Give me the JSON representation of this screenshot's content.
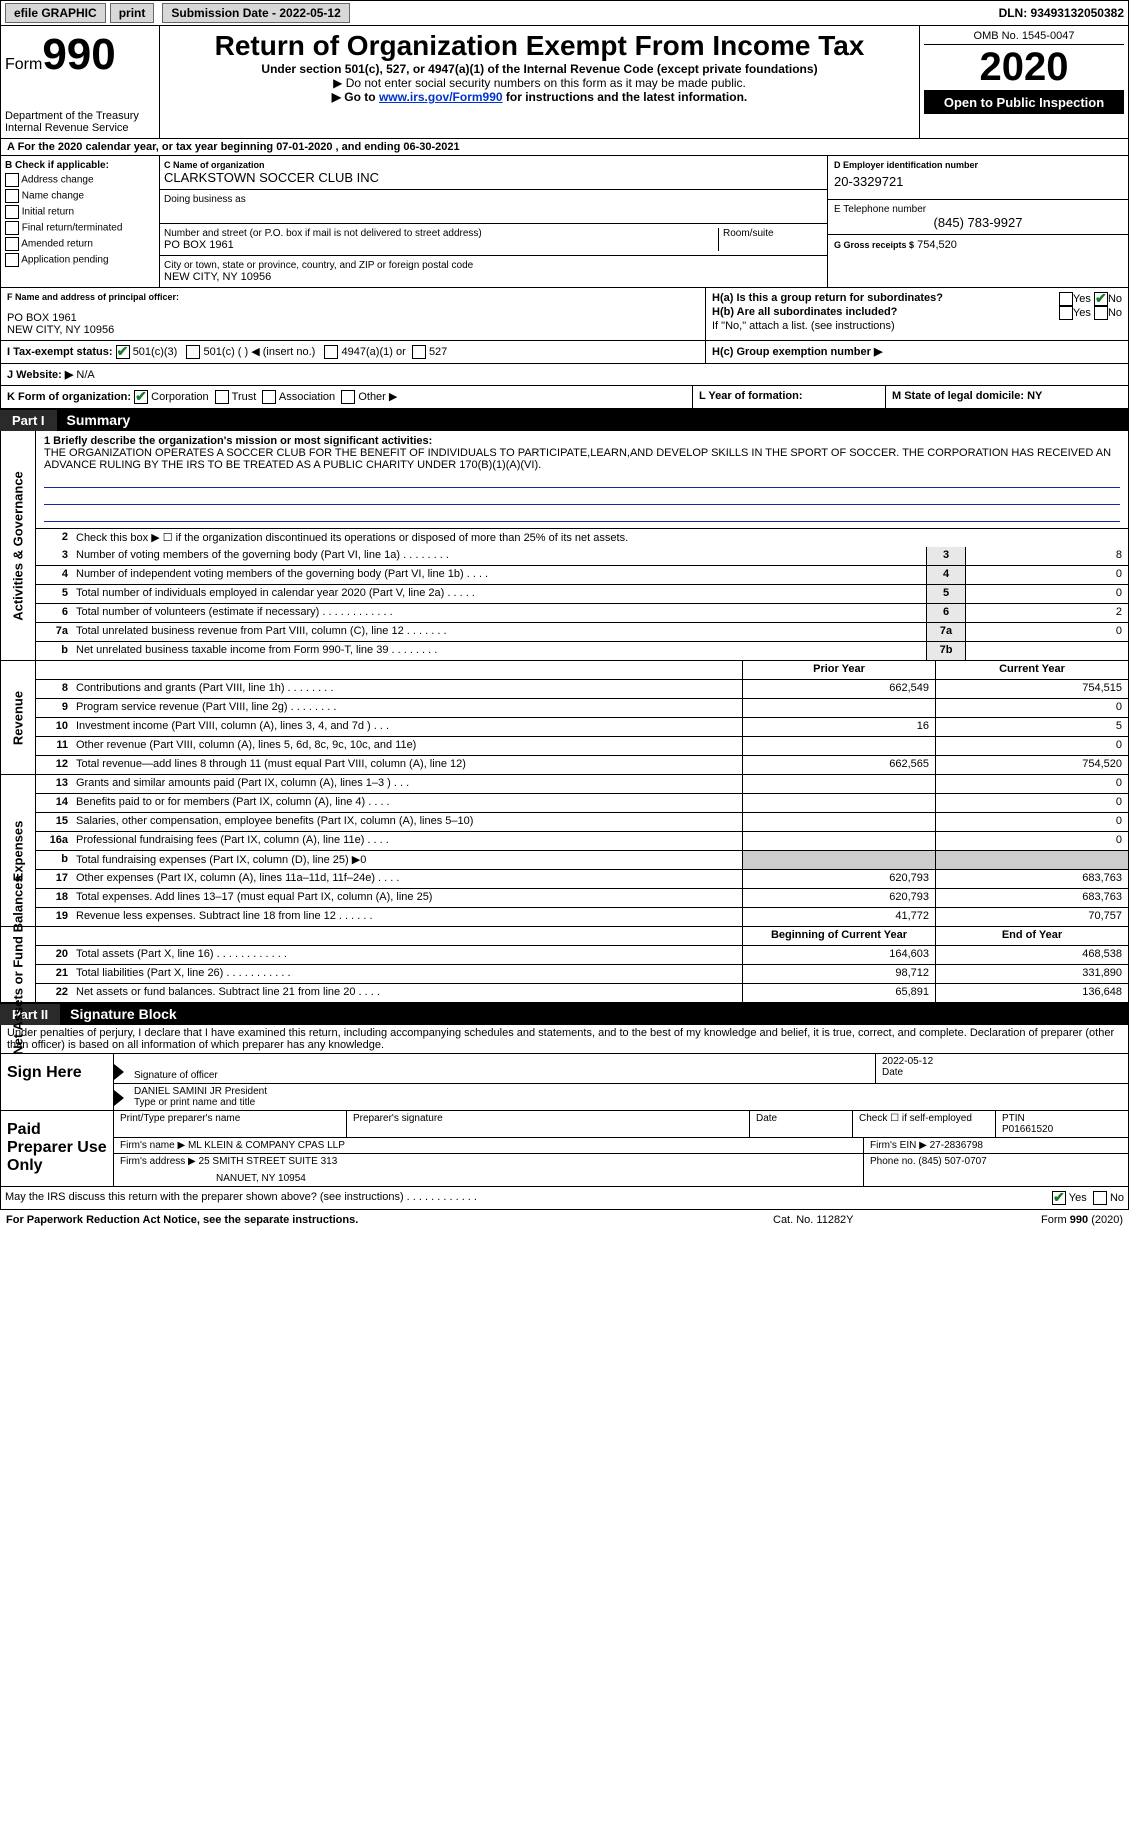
{
  "topbar": {
    "efile": "efile GRAPHIC",
    "print": "print",
    "submission_label": "Submission Date - 2022-05-12",
    "dln": "DLN: 93493132050382"
  },
  "header": {
    "form_prefix": "Form",
    "form_number": "990",
    "title": "Return of Organization Exempt From Income Tax",
    "subtitle": "Under section 501(c), 527, or 4947(a)(1) of the Internal Revenue Code (except private foundations)",
    "arrow1": "▶ Do not enter social security numbers on this form as it may be made public.",
    "arrow2_pre": "▶ Go to ",
    "arrow2_link": "www.irs.gov/Form990",
    "arrow2_post": " for instructions and the latest information.",
    "dept1": "Department of the Treasury",
    "dept2": "Internal Revenue Service",
    "omb": "OMB No. 1545-0047",
    "year": "2020",
    "open": "Open to Public Inspection"
  },
  "rowA": "A  For the 2020 calendar year, or tax year beginning 07-01-2020     , and ending 06-30-2021",
  "boxB": {
    "label": "B Check if applicable:",
    "items": [
      "Address change",
      "Name change",
      "Initial return",
      "Final return/terminated",
      "Amended return",
      "Application pending"
    ]
  },
  "boxC": {
    "label_name": "C Name of organization",
    "org": "CLARKSTOWN SOCCER CLUB INC",
    "dba_label": "Doing business as",
    "addr_label": "Number and street (or P.O. box if mail is not delivered to street address)",
    "room_label": "Room/suite",
    "addr": "PO BOX 1961",
    "city_label": "City or town, state or province, country, and ZIP or foreign postal code",
    "city": "NEW CITY, NY  10956"
  },
  "boxD": {
    "label": "D Employer identification number",
    "ein": "20-3329721"
  },
  "boxE": {
    "label": "E Telephone number",
    "tel": "(845) 783-9927"
  },
  "boxG": {
    "label": "G Gross receipts $",
    "val": "754,520"
  },
  "boxF": {
    "label": "F  Name and address of principal officer:",
    "line1": "PO BOX 1961",
    "line2": "NEW CITY, NY  10956"
  },
  "boxH": {
    "a": "H(a)  Is this a group return for subordinates?",
    "b": "H(b)  Are all subordinates included?",
    "b_note": "If \"No,\" attach a list. (see instructions)",
    "c": "H(c)  Group exemption number ▶",
    "yes": "Yes",
    "no": "No"
  },
  "boxI": {
    "label": "I    Tax-exempt status:",
    "c3": "501(c)(3)",
    "c": "501(c) (   ) ◀ (insert no.)",
    "a1": "4947(a)(1) or",
    "s527": "527"
  },
  "boxJ": {
    "label": "J   Website: ▶",
    "val": "N/A"
  },
  "boxK": {
    "label": "K Form of organization:",
    "corp": "Corporation",
    "trust": "Trust",
    "assoc": "Association",
    "other": "Other ▶"
  },
  "boxL": {
    "label": "L Year of formation:"
  },
  "boxM": {
    "label": "M State of legal domicile: NY"
  },
  "part1": {
    "num": "Part I",
    "title": "Summary"
  },
  "summary": {
    "l1": "1  Briefly describe the organization's mission or most significant activities:",
    "l1text": "THE ORGANIZATION OPERATES A SOCCER CLUB FOR THE BENEFIT OF INDIVIDUALS TO PARTICIPATE,LEARN,AND DEVELOP SKILLS IN THE SPORT OF SOCCER. THE CORPORATION HAS RECEIVED AN ADVANCE RULING BY THE IRS TO BE TREATED AS A PUBLIC CHARITY UNDER 170(B)(1)(A)(VI).",
    "l2": "Check this box ▶ ☐  if the organization discontinued its operations or disposed of more than 25% of its net assets.",
    "lines_ag": [
      {
        "n": "3",
        "t": "Number of voting members of the governing body (Part VI, line 1a)   .    .    .    .    .    .    .    .",
        "box": "3",
        "v": "8"
      },
      {
        "n": "4",
        "t": "Number of independent voting members of the governing body (Part VI, line 1b)   .    .    .    .",
        "box": "4",
        "v": "0"
      },
      {
        "n": "5",
        "t": "Total number of individuals employed in calendar year 2020 (Part V, line 2a)   .    .    .    .    .",
        "box": "5",
        "v": "0"
      },
      {
        "n": "6",
        "t": "Total number of volunteers (estimate if necessary)    .    .    .    .    .    .    .    .    .    .    .    .",
        "box": "6",
        "v": "2"
      },
      {
        "n": "7a",
        "t": "Total unrelated business revenue from Part VIII, column (C), line 12   .    .    .    .    .    .    .",
        "box": "7a",
        "v": "0"
      },
      {
        "n": "  b",
        "t": "Net unrelated business taxable income from Form 990-T, line 39   .    .    .    .    .    .    .    .",
        "box": "7b",
        "v": ""
      }
    ],
    "hdr_prior": "Prior Year",
    "hdr_current": "Current Year",
    "revenue": [
      {
        "n": "8",
        "t": "Contributions and grants (Part VIII, line 1h)    .    .    .    .    .    .    .    .",
        "p": "662,549",
        "c": "754,515"
      },
      {
        "n": "9",
        "t": "Program service revenue (Part VIII, line 2g)    .    .    .    .    .    .    .    .",
        "p": "",
        "c": "0"
      },
      {
        "n": "10",
        "t": "Investment income (Part VIII, column (A), lines 3, 4, and 7d )    .    .    .",
        "p": "16",
        "c": "5"
      },
      {
        "n": "11",
        "t": "Other revenue (Part VIII, column (A), lines 5, 6d, 8c, 9c, 10c, and 11e)",
        "p": "",
        "c": "0"
      },
      {
        "n": "12",
        "t": "Total revenue—add lines 8 through 11 (must equal Part VIII, column (A), line 12)",
        "p": "662,565",
        "c": "754,520"
      }
    ],
    "expenses": [
      {
        "n": "13",
        "t": "Grants and similar amounts paid (Part IX, column (A), lines 1–3 )    .    .    .",
        "p": "",
        "c": "0"
      },
      {
        "n": "14",
        "t": "Benefits paid to or for members (Part IX, column (A), line 4)   .    .    .    .",
        "p": "",
        "c": "0"
      },
      {
        "n": "15",
        "t": "Salaries, other compensation, employee benefits (Part IX, column (A), lines 5–10)",
        "p": "",
        "c": "0"
      },
      {
        "n": "16a",
        "t": "Professional fundraising fees (Part IX, column (A), line 11e)    .    .    .    .",
        "p": "",
        "c": "0"
      },
      {
        "n": "  b",
        "t": "Total fundraising expenses (Part IX, column (D), line 25) ▶0",
        "p": "—",
        "c": "—"
      },
      {
        "n": "17",
        "t": "Other expenses (Part IX, column (A), lines 11a–11d, 11f–24e)    .    .    .    .",
        "p": "620,793",
        "c": "683,763"
      },
      {
        "n": "18",
        "t": "Total expenses. Add lines 13–17 (must equal Part IX, column (A), line 25)",
        "p": "620,793",
        "c": "683,763"
      },
      {
        "n": "19",
        "t": "Revenue less expenses. Subtract line 18 from line 12    .    .    .    .    .    .",
        "p": "41,772",
        "c": "70,757"
      }
    ],
    "hdr_boy": "Beginning of Current Year",
    "hdr_eoy": "End of Year",
    "net": [
      {
        "n": "20",
        "t": "Total assets (Part X, line 16)   .    .    .    .    .    .    .    .    .    .    .    .",
        "p": "164,603",
        "c": "468,538"
      },
      {
        "n": "21",
        "t": "Total liabilities (Part X, line 26)   .    .    .    .    .    .    .    .    .    .    .",
        "p": "98,712",
        "c": "331,890"
      },
      {
        "n": "22",
        "t": "Net assets or fund balances. Subtract line 21 from line 20   .    .    .    .",
        "p": "65,891",
        "c": "136,648"
      }
    ],
    "vtab_ag": "Activities & Governance",
    "vtab_rev": "Revenue",
    "vtab_exp": "Expenses",
    "vtab_net": "Net Assets or Fund Balances"
  },
  "part2": {
    "num": "Part II",
    "title": "Signature Block"
  },
  "sig": {
    "decl": "Under penalties of perjury, I declare that I have examined this return, including accompanying schedules and statements, and to the best of my knowledge and belief, it is true, correct, and complete. Declaration of preparer (other than officer) is based on all information of which preparer has any knowledge.",
    "sign_here": "Sign Here",
    "sig_officer": "Signature of officer",
    "date_val": "2022-05-12",
    "date": "Date",
    "name": "DANIEL SAMINI JR  President",
    "name_lbl": "Type or print name and title",
    "paid": "Paid Preparer Use Only",
    "prep_name_lbl": "Print/Type preparer's name",
    "prep_sig_lbl": "Preparer's signature",
    "date_lbl": "Date",
    "check_self": "Check ☐ if self-employed",
    "ptin_lbl": "PTIN",
    "ptin": "P01661520",
    "firm_name_lbl": "Firm's name    ▶",
    "firm_name": "ML KLEIN & COMPANY CPAS LLP",
    "firm_ein_lbl": "Firm's EIN ▶",
    "firm_ein": "27-2836798",
    "firm_addr_lbl": "Firm's address ▶",
    "firm_addr1": "25 SMITH STREET SUITE 313",
    "firm_addr2": "NANUET, NY  10954",
    "phone_lbl": "Phone no.",
    "phone": "(845) 507-0707",
    "discuss": "May the IRS discuss this return with the preparer shown above? (see instructions)    .    .    .    .    .    .    .    .    .    .    .    .",
    "yes": "Yes",
    "no": "No"
  },
  "footer": {
    "pra": "For Paperwork Reduction Act Notice, see the separate instructions.",
    "cat": "Cat. No. 11282Y",
    "form": "Form 990 (2020)"
  }
}
